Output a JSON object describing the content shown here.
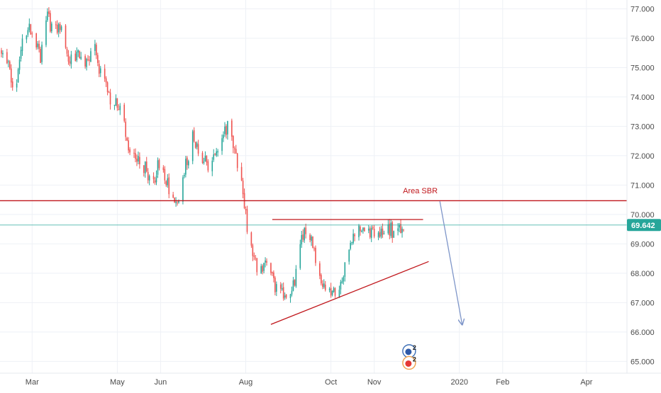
{
  "chart_data": {
    "type": "candlestick",
    "title": "",
    "colors": {
      "up": "#26a69a",
      "down": "#ef5350",
      "annotation": "#c0161b",
      "arrow": "#7f96c9",
      "last_price_line": "#26a69a",
      "last_price_bg": "#26a69a",
      "grid": "#eef1f6",
      "axis_text": "#4a4a4a"
    },
    "grid": true,
    "y_axis": {
      "position": "right",
      "range": [
        64.6,
        77.3
      ],
      "ticks": [
        "65.000",
        "66.000",
        "67.000",
        "68.000",
        "69.000",
        "70.000",
        "71.000",
        "72.000",
        "73.000",
        "74.000",
        "75.000",
        "76.000",
        "77.000"
      ]
    },
    "x_axis": {
      "range": [
        "2019-02-06",
        "2020-04-30"
      ],
      "ticks": [
        {
          "date": "2019-03-01",
          "label": "Mar"
        },
        {
          "date": "2019-05-01",
          "label": "May"
        },
        {
          "date": "2019-06-01",
          "label": "Jun"
        },
        {
          "date": "2019-08-01",
          "label": "Aug"
        },
        {
          "date": "2019-10-01",
          "label": "Oct"
        },
        {
          "date": "2019-11-01",
          "label": "Nov"
        },
        {
          "date": "2020-01-01",
          "label": "2020"
        },
        {
          "date": "2020-02-01",
          "label": "Feb"
        },
        {
          "date": "2020-04-01",
          "label": "Apr"
        }
      ]
    },
    "last_price": {
      "value": 69.642,
      "label": "69.642"
    },
    "price_path": [
      [
        "2019-02-07",
        75.6
      ],
      [
        "2019-02-12",
        75.2
      ],
      [
        "2019-02-16",
        73.9
      ],
      [
        "2019-02-22",
        75.9
      ],
      [
        "2019-03-01",
        76.4
      ],
      [
        "2019-03-07",
        75.4
      ],
      [
        "2019-03-12",
        76.7
      ],
      [
        "2019-03-16",
        76.2
      ],
      [
        "2019-03-22",
        76.5
      ],
      [
        "2019-03-28",
        75.2
      ],
      [
        "2019-04-02",
        75.5
      ],
      [
        "2019-04-09",
        75.2
      ],
      [
        "2019-04-14",
        75.9
      ],
      [
        "2019-04-18",
        74.9
      ],
      [
        "2019-04-25",
        74.0
      ],
      [
        "2019-05-01",
        73.8
      ],
      [
        "2019-05-05",
        73.2
      ],
      [
        "2019-05-10",
        72.2
      ],
      [
        "2019-05-16",
        71.9
      ],
      [
        "2019-05-21",
        71.6
      ],
      [
        "2019-05-26",
        70.9
      ],
      [
        "2019-05-31",
        71.8
      ],
      [
        "2019-06-04",
        71.4
      ],
      [
        "2019-06-09",
        70.6
      ],
      [
        "2019-06-13",
        70.5
      ],
      [
        "2019-06-18",
        71.5
      ],
      [
        "2019-06-24",
        72.6
      ],
      [
        "2019-06-29",
        72.2
      ],
      [
        "2019-07-05",
        71.6
      ],
      [
        "2019-07-10",
        72.2
      ],
      [
        "2019-07-15",
        72.6
      ],
      [
        "2019-07-19",
        73.0
      ],
      [
        "2019-07-22",
        72.6
      ],
      [
        "2019-07-25",
        72.0
      ],
      [
        "2019-07-28",
        71.2
      ],
      [
        "2019-07-31",
        70.4
      ],
      [
        "2019-08-02",
        69.5
      ],
      [
        "2019-08-06",
        68.6
      ],
      [
        "2019-08-10",
        68.0
      ],
      [
        "2019-08-16",
        68.5
      ],
      [
        "2019-08-21",
        67.6
      ],
      [
        "2019-08-26",
        67.4
      ],
      [
        "2019-08-30",
        67.0
      ],
      [
        "2019-09-05",
        67.8
      ],
      [
        "2019-09-10",
        69.2
      ],
      [
        "2019-09-14",
        69.6
      ],
      [
        "2019-09-18",
        68.8
      ],
      [
        "2019-09-22",
        68.2
      ],
      [
        "2019-09-26",
        67.6
      ],
      [
        "2019-10-01",
        67.4
      ],
      [
        "2019-10-05",
        67.2
      ],
      [
        "2019-10-08",
        67.6
      ],
      [
        "2019-10-12",
        68.4
      ],
      [
        "2019-10-16",
        69.0
      ],
      [
        "2019-10-20",
        69.6
      ],
      [
        "2019-10-26",
        69.4
      ],
      [
        "2019-10-31",
        69.3
      ],
      [
        "2019-11-04",
        69.4
      ],
      [
        "2019-11-08",
        69.3
      ],
      [
        "2019-11-12",
        69.5
      ],
      [
        "2019-11-16",
        69.4
      ],
      [
        "2019-11-20",
        69.5
      ],
      [
        "2019-11-24",
        69.6
      ]
    ],
    "annotations": [
      {
        "name": "area-sbr-horizontal-line",
        "kind": "hline",
        "y": 70.47,
        "from": "2019-02-06",
        "to": "2020-04-30"
      },
      {
        "name": "area-sbr-label",
        "kind": "text",
        "text": "Area SBR",
        "x": "2019-12-04",
        "y": 70.72
      },
      {
        "name": "triangle-resistance-line",
        "kind": "segment",
        "x1": "2019-08-20",
        "y1": 69.83,
        "x2": "2019-12-06",
        "y2": 69.83
      },
      {
        "name": "triangle-support-trendline",
        "kind": "segment",
        "x1": "2019-08-19",
        "y1": 66.26,
        "x2": "2019-12-10",
        "y2": 68.4
      },
      {
        "name": "bearish-projection-arrow",
        "kind": "arrow",
        "x1": "2019-12-18",
        "y1": 70.45,
        "x2": "2020-01-03",
        "y2": 66.25
      }
    ],
    "event_badges": [
      {
        "name": "event-badge-1",
        "count": "2",
        "x": "2019-11-26",
        "y": 65.35
      },
      {
        "name": "event-badge-2",
        "count": "2",
        "x": "2019-11-26",
        "y": 64.95
      }
    ]
  }
}
